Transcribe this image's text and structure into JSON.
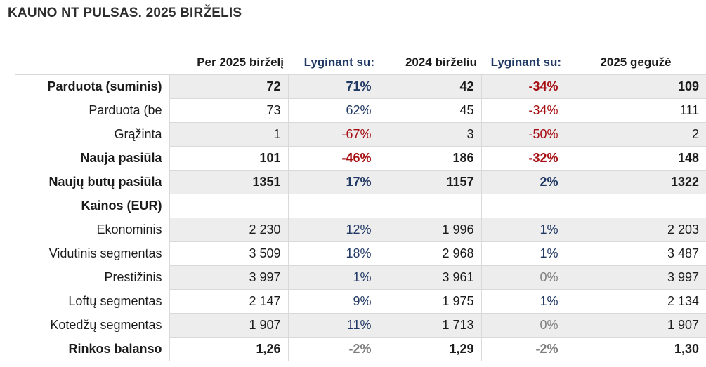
{
  "title": "KAUNO NT PULSAS. 2025 BIRŽELIS",
  "colors": {
    "positive": "#203864",
    "negative": "#a50e12",
    "neutral": "#7f7f7f",
    "shade": "#ededed"
  },
  "headers": [
    "",
    "Per 2025 birželį",
    "Lyginant su:",
    "2024 birželiu",
    "Lyginant su:",
    "2025 gegužė"
  ],
  "rows": [
    {
      "label": "Parduota (suminis)",
      "bold": true,
      "shaded": true,
      "cells": [
        "72",
        "71%",
        "42",
        "-34%",
        "109"
      ],
      "tones": [
        "pos",
        "neg"
      ]
    },
    {
      "label": "Parduota (be",
      "bold": false,
      "shaded": false,
      "cells": [
        "73",
        "62%",
        "45",
        "-34%",
        "111"
      ],
      "tones": [
        "pos",
        "neg"
      ]
    },
    {
      "label": "Grąžinta",
      "bold": false,
      "shaded": true,
      "cells": [
        "1",
        "-67%",
        "3",
        "-50%",
        "2"
      ],
      "tones": [
        "neg",
        "neg"
      ]
    },
    {
      "label": "Nauja pasiūla",
      "bold": true,
      "shaded": false,
      "cells": [
        "101",
        "-46%",
        "186",
        "-32%",
        "148"
      ],
      "tones": [
        "neg",
        "neg"
      ]
    },
    {
      "label": "Naujų butų pasiūla",
      "bold": true,
      "shaded": true,
      "cells": [
        "1351",
        "17%",
        "1157",
        "2%",
        "1322"
      ],
      "tones": [
        "pos",
        "pos"
      ]
    },
    {
      "label": "Kainos (EUR)",
      "bold": true,
      "shaded": false,
      "cells": [
        "",
        "",
        "",
        "",
        ""
      ],
      "tones": [
        "",
        ""
      ]
    },
    {
      "label": "Ekonominis",
      "bold": false,
      "shaded": true,
      "cells": [
        "2 230",
        "12%",
        "1 996",
        "1%",
        "2 203"
      ],
      "tones": [
        "pos",
        "pos"
      ]
    },
    {
      "label": "Vidutinis segmentas",
      "bold": false,
      "shaded": false,
      "cells": [
        "3 509",
        "18%",
        "2 968",
        "1%",
        "3 487"
      ],
      "tones": [
        "pos",
        "pos"
      ]
    },
    {
      "label": "Prestižinis",
      "bold": false,
      "shaded": true,
      "cells": [
        "3 997",
        "1%",
        "3 961",
        "0%",
        "3 997"
      ],
      "tones": [
        "pos",
        "neu"
      ]
    },
    {
      "label": "Loftų segmentas",
      "bold": false,
      "shaded": false,
      "cells": [
        "2 147",
        "9%",
        "1 975",
        "1%",
        "2 134"
      ],
      "tones": [
        "pos",
        "pos"
      ]
    },
    {
      "label": "Kotedžų segmentas",
      "bold": false,
      "shaded": true,
      "cells": [
        "1 907",
        "11%",
        "1 713",
        "0%",
        "1 907"
      ],
      "tones": [
        "pos",
        "neu"
      ]
    },
    {
      "label": "Rinkos balanso",
      "bold": true,
      "shaded": false,
      "cells": [
        "1,26",
        "-2%",
        "1,29",
        "-2%",
        "1,30"
      ],
      "tones": [
        "neu",
        "neu"
      ]
    }
  ]
}
